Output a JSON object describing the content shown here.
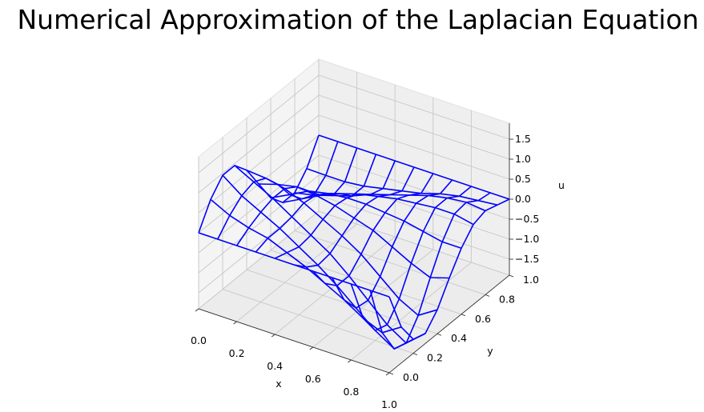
{
  "chart_data": {
    "type": "wireframe",
    "title": "Numerical Approximation of the Laplacian Equation",
    "xlabel": "x",
    "ylabel": "y",
    "zlabel": "u",
    "x_ticks": [
      "0.0",
      "0.2",
      "0.4",
      "0.6",
      "0.8",
      "1.0"
    ],
    "y_ticks": [
      "0.0",
      "0.2",
      "0.4",
      "0.6",
      "0.8",
      "1.0"
    ],
    "z_ticks": [
      "−1.5",
      "−1.0",
      "−0.5",
      "0.0",
      "0.5",
      "1.0",
      "1.5"
    ],
    "xlim": [
      0,
      1
    ],
    "ylim": [
      0,
      1
    ],
    "zlim": [
      -1.9,
      1.9
    ],
    "grid": true,
    "line_color": "#0000ff",
    "series": [
      {
        "x": [
          0,
          0.1,
          0.2,
          0.3,
          0.4,
          0.5,
          0.6,
          0.7,
          0.8,
          0.9,
          1.0
        ],
        "y": [
          0,
          0.1,
          0.2,
          0.3,
          0.4,
          0.5,
          0.6,
          0.7,
          0.8,
          0.9,
          1.0
        ],
        "z": [
          [
            0.0,
            0.59,
            0.95,
            0.95,
            0.59,
            0.0,
            -0.59,
            -0.95,
            -0.95,
            -0.59,
            0.0
          ],
          [
            0.0,
            0.35,
            0.6,
            0.7,
            0.55,
            0.15,
            -0.35,
            -0.7,
            -0.85,
            -0.6,
            0.0
          ],
          [
            0.0,
            0.2,
            0.35,
            0.45,
            0.45,
            0.25,
            -0.1,
            -0.45,
            -0.7,
            -0.6,
            0.0
          ],
          [
            0.0,
            0.1,
            0.1,
            0.15,
            0.25,
            0.2,
            0.0,
            -0.25,
            -0.55,
            -0.55,
            0.0
          ],
          [
            0.0,
            -0.1,
            -0.2,
            -0.15,
            0.0,
            0.1,
            0.05,
            -0.1,
            -0.35,
            -0.45,
            0.0
          ],
          [
            0.0,
            -0.3,
            -0.5,
            -0.45,
            -0.25,
            -0.05,
            0.05,
            0.0,
            -0.2,
            -0.35,
            0.0
          ],
          [
            0.0,
            -0.55,
            -0.85,
            -0.85,
            -0.55,
            -0.2,
            0.0,
            0.1,
            -0.05,
            -0.25,
            0.0
          ],
          [
            0.0,
            -0.8,
            -1.25,
            -1.3,
            -0.95,
            -0.45,
            -0.05,
            0.15,
            0.1,
            -0.1,
            0.0
          ],
          [
            0.0,
            -1.1,
            -1.65,
            -1.75,
            -1.35,
            -0.7,
            -0.15,
            0.2,
            0.2,
            0.0,
            0.0
          ],
          [
            0.0,
            -1.3,
            -1.95,
            -2.05,
            -1.6,
            -0.9,
            -0.25,
            0.2,
            0.25,
            0.05,
            0.0
          ],
          [
            0.0,
            -1.0,
            -1.55,
            -1.65,
            -1.3,
            -0.75,
            -0.25,
            0.1,
            0.2,
            0.1,
            0.0
          ]
        ]
      }
    ]
  }
}
